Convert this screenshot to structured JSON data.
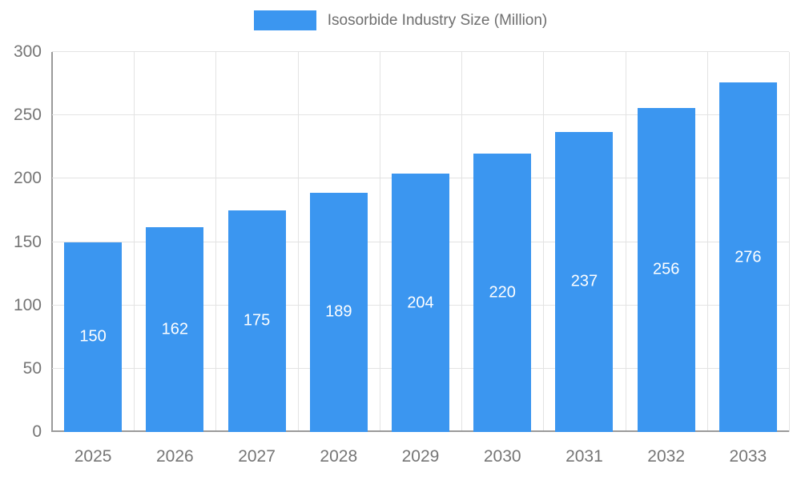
{
  "legend": {
    "label": "Isosorbide Industry Size (Million)"
  },
  "colors": {
    "bar": "#3B96F0",
    "grid": "#E3E3E3",
    "axis": "#9A9A9A",
    "axis_text": "#757575",
    "legend_text": "#6F6F6F",
    "bar_label": "#FFFFFF",
    "background": "#FFFFFF"
  },
  "chart_data": {
    "type": "bar",
    "title": "Isosorbide Industry Size (Million)",
    "categories": [
      "2025",
      "2026",
      "2027",
      "2028",
      "2029",
      "2030",
      "2031",
      "2032",
      "2033"
    ],
    "values": [
      150,
      162,
      175,
      189,
      204,
      220,
      237,
      256,
      276
    ],
    "xlabel": "",
    "ylabel": "",
    "ylim": [
      0,
      300
    ],
    "yticks": [
      0,
      50,
      100,
      150,
      200,
      250,
      300
    ],
    "grid": true,
    "legend_position": "top",
    "bar_labels_inside": true
  }
}
